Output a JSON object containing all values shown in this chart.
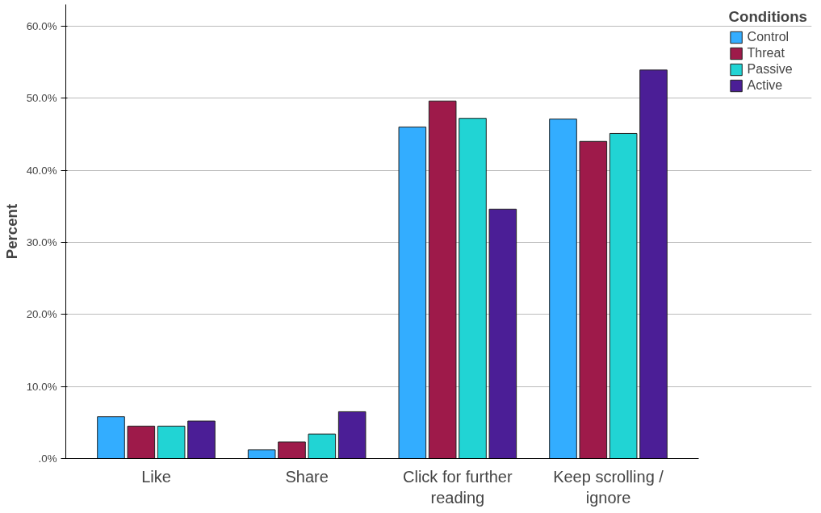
{
  "chart_data": {
    "type": "bar",
    "ylabel": "Percent",
    "legend_title": "Conditions",
    "legend": "right",
    "grid": "y",
    "categories": [
      "Like",
      "Share",
      "Click for further\nreading",
      "Keep scrolling /\nignore"
    ],
    "series": [
      {
        "name": "Control",
        "color": "#33adff",
        "values": [
          5.8,
          1.2,
          46.0,
          47.1
        ]
      },
      {
        "name": "Threat",
        "color": "#9e1a4a",
        "values": [
          4.5,
          2.3,
          49.6,
          44.0
        ]
      },
      {
        "name": "Passive",
        "color": "#21d4d4",
        "values": [
          4.5,
          3.4,
          47.2,
          45.1
        ]
      },
      {
        "name": "Active",
        "color": "#4b1e96",
        "values": [
          5.2,
          6.5,
          34.6,
          53.9
        ]
      }
    ],
    "ylim": [
      0,
      63
    ],
    "yticks": [
      {
        "value": 0,
        "label": ".0%"
      },
      {
        "value": 10,
        "label": "10.0%"
      },
      {
        "value": 20,
        "label": "20.0%"
      },
      {
        "value": 30,
        "label": "30.0%"
      },
      {
        "value": 40,
        "label": "40.0%"
      },
      {
        "value": 50,
        "label": "50.0%"
      },
      {
        "value": 60,
        "label": "60.0%"
      }
    ]
  }
}
